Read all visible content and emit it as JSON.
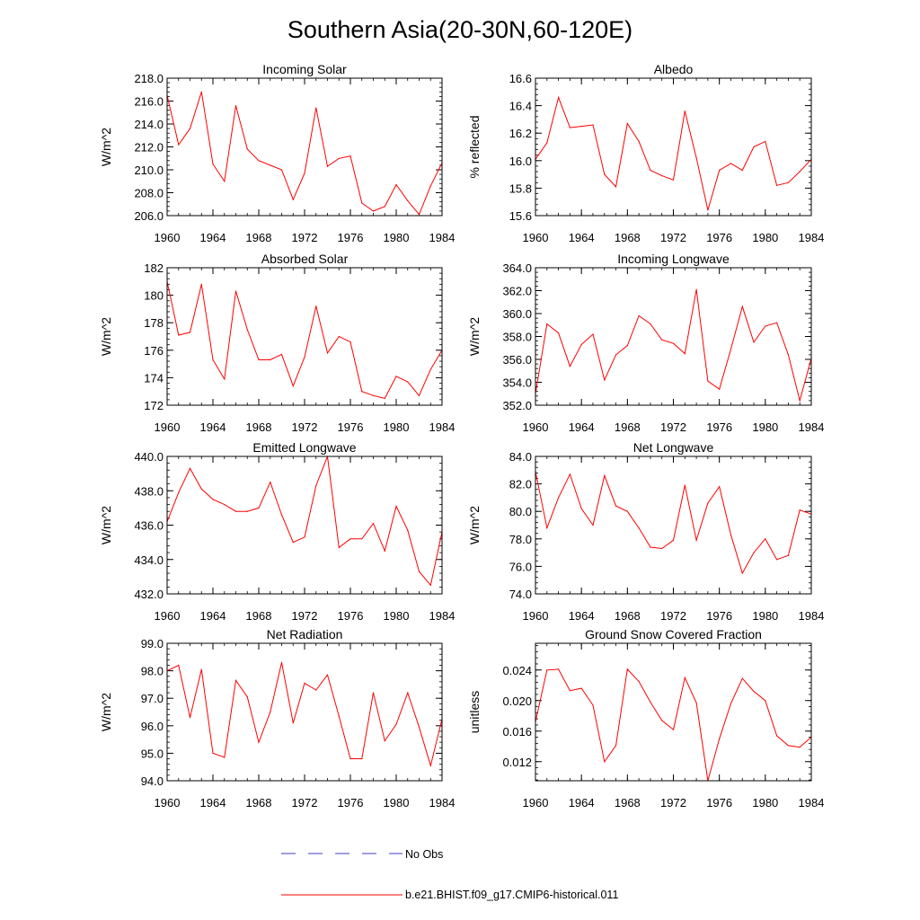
{
  "title": "Southern Asia(20-30N,60-120E)",
  "legend": {
    "obs_label": "No Obs",
    "model_label": "b.e21.BHIST.f09_g17.CMIP6-historical.011"
  },
  "colors": {
    "model": "#ff0000",
    "obs": "#3b3bbf",
    "axis": "#000000"
  },
  "chart_data": [
    {
      "type": "line",
      "title": "Incoming Solar",
      "xlabel": "",
      "ylabel": "W/m^2",
      "xlim": [
        1960,
        1984
      ],
      "ylim": [
        206,
        218
      ],
      "xticks": [
        1960,
        1964,
        1968,
        1972,
        1976,
        1980,
        1984
      ],
      "yticks": [
        "206.0",
        "208.0",
        "210.0",
        "212.0",
        "214.0",
        "216.0",
        "218.0"
      ],
      "grid": false,
      "series": [
        {
          "name": "b.e21.BHIST.f09_g17.CMIP6-historical.011",
          "x": [
            1960,
            1961,
            1962,
            1963,
            1964,
            1965,
            1966,
            1967,
            1968,
            1969,
            1970,
            1971,
            1972,
            1973,
            1974,
            1975,
            1976,
            1977,
            1978,
            1979,
            1980,
            1981,
            1982,
            1983,
            1984
          ],
          "y": [
            216.5,
            212.2,
            213.6,
            216.8,
            210.5,
            209.0,
            215.6,
            211.8,
            210.8,
            210.4,
            210.0,
            207.4,
            209.7,
            215.4,
            210.3,
            211.0,
            211.2,
            207.1,
            206.4,
            206.8,
            208.7,
            207.3,
            206.1,
            208.6,
            210.6
          ]
        }
      ]
    },
    {
      "type": "line",
      "title": "Albedo",
      "xlabel": "",
      "ylabel": "% reflected",
      "xlim": [
        1960,
        1984
      ],
      "ylim": [
        15.6,
        16.6
      ],
      "xticks": [
        1960,
        1964,
        1968,
        1972,
        1976,
        1980,
        1984
      ],
      "yticks": [
        "15.6",
        "15.8",
        "16.0",
        "16.2",
        "16.4",
        "16.6"
      ],
      "grid": false,
      "series": [
        {
          "name": "b.e21.BHIST.f09_g17.CMIP6-historical.011",
          "x": [
            1960,
            1961,
            1962,
            1963,
            1964,
            1965,
            1966,
            1967,
            1968,
            1969,
            1970,
            1971,
            1972,
            1973,
            1974,
            1975,
            1976,
            1977,
            1978,
            1979,
            1980,
            1981,
            1982,
            1983,
            1984
          ],
          "y": [
            16.01,
            16.13,
            16.46,
            16.24,
            16.25,
            16.26,
            15.9,
            15.81,
            16.27,
            16.14,
            15.93,
            15.89,
            15.86,
            16.36,
            16.02,
            15.64,
            15.93,
            15.98,
            15.93,
            16.1,
            16.14,
            15.82,
            15.84,
            15.92,
            16.01
          ]
        }
      ]
    },
    {
      "type": "line",
      "title": "Absorbed Solar",
      "xlabel": "",
      "ylabel": "W/m^2",
      "xlim": [
        1960,
        1984
      ],
      "ylim": [
        172,
        182
      ],
      "xticks": [
        1960,
        1964,
        1968,
        1972,
        1976,
        1980,
        1984
      ],
      "yticks": [
        "172",
        "174",
        "176",
        "178",
        "180",
        "182"
      ],
      "grid": false,
      "series": [
        {
          "name": "b.e21.BHIST.f09_g17.CMIP6-historical.011",
          "x": [
            1960,
            1961,
            1962,
            1963,
            1964,
            1965,
            1966,
            1967,
            1968,
            1969,
            1970,
            1971,
            1972,
            1973,
            1974,
            1975,
            1976,
            1977,
            1978,
            1979,
            1980,
            1981,
            1982,
            1983,
            1984
          ],
          "y": [
            181.0,
            177.1,
            177.3,
            180.8,
            175.3,
            173.9,
            180.3,
            177.5,
            175.3,
            175.3,
            175.7,
            173.4,
            175.5,
            179.2,
            175.8,
            177.0,
            176.6,
            173.0,
            172.7,
            172.5,
            174.1,
            173.7,
            172.7,
            174.6,
            176.0
          ]
        }
      ]
    },
    {
      "type": "line",
      "title": "Incoming Longwave",
      "xlabel": "",
      "ylabel": "W/m^2",
      "xlim": [
        1960,
        1984
      ],
      "ylim": [
        352,
        364
      ],
      "xticks": [
        1960,
        1964,
        1968,
        1972,
        1976,
        1980,
        1984
      ],
      "yticks": [
        "352.0",
        "354.0",
        "356.0",
        "358.0",
        "360.0",
        "362.0",
        "364.0"
      ],
      "grid": false,
      "series": [
        {
          "name": "b.e21.BHIST.f09_g17.CMIP6-historical.011",
          "x": [
            1960,
            1961,
            1962,
            1963,
            1964,
            1965,
            1966,
            1967,
            1968,
            1969,
            1970,
            1971,
            1972,
            1973,
            1974,
            1975,
            1976,
            1977,
            1978,
            1979,
            1980,
            1981,
            1982,
            1983,
            1984
          ],
          "y": [
            353.0,
            359.1,
            358.3,
            355.4,
            357.3,
            358.2,
            354.2,
            356.4,
            357.2,
            359.8,
            359.1,
            357.7,
            357.4,
            356.5,
            362.1,
            354.1,
            353.4,
            356.9,
            360.6,
            357.5,
            358.9,
            359.2,
            356.4,
            352.4,
            356.1
          ]
        }
      ]
    },
    {
      "type": "line",
      "title": "Emitted Longwave",
      "xlabel": "",
      "ylabel": "W/m^2",
      "xlim": [
        1960,
        1984
      ],
      "ylim": [
        432,
        440
      ],
      "xticks": [
        1960,
        1964,
        1968,
        1972,
        1976,
        1980,
        1984
      ],
      "yticks": [
        "432.0",
        "434.0",
        "436.0",
        "438.0",
        "440.0"
      ],
      "grid": false,
      "series": [
        {
          "name": "b.e21.BHIST.f09_g17.CMIP6-historical.011",
          "x": [
            1960,
            1961,
            1962,
            1963,
            1964,
            1965,
            1966,
            1967,
            1968,
            1969,
            1970,
            1971,
            1972,
            1973,
            1974,
            1975,
            1976,
            1977,
            1978,
            1979,
            1980,
            1981,
            1982,
            1983,
            1984
          ],
          "y": [
            436.2,
            437.9,
            439.3,
            438.1,
            437.5,
            437.2,
            436.8,
            436.8,
            437.0,
            438.5,
            436.6,
            435.0,
            435.3,
            438.3,
            440.0,
            434.7,
            435.2,
            435.2,
            436.1,
            434.5,
            437.1,
            435.7,
            433.3,
            432.5,
            435.6
          ]
        }
      ]
    },
    {
      "type": "line",
      "title": "Net Longwave",
      "xlabel": "",
      "ylabel": "W/m^2",
      "xlim": [
        1960,
        1984
      ],
      "ylim": [
        74,
        84
      ],
      "xticks": [
        1960,
        1964,
        1968,
        1972,
        1976,
        1980,
        1984
      ],
      "yticks": [
        "74.0",
        "76.0",
        "78.0",
        "80.0",
        "82.0",
        "84.0"
      ],
      "grid": false,
      "series": [
        {
          "name": "b.e21.BHIST.f09_g17.CMIP6-historical.011",
          "x": [
            1960,
            1961,
            1962,
            1963,
            1964,
            1965,
            1966,
            1967,
            1968,
            1969,
            1970,
            1971,
            1972,
            1973,
            1974,
            1975,
            1976,
            1977,
            1978,
            1979,
            1980,
            1981,
            1982,
            1983,
            1984
          ],
          "y": [
            82.9,
            78.8,
            81.0,
            82.7,
            80.2,
            79.0,
            82.6,
            80.4,
            80.0,
            78.8,
            77.4,
            77.3,
            77.9,
            81.9,
            77.9,
            80.6,
            81.8,
            78.3,
            75.5,
            77.0,
            78.0,
            76.5,
            76.8,
            80.1,
            79.8
          ]
        }
      ]
    },
    {
      "type": "line",
      "title": "Net Radiation",
      "xlabel": "",
      "ylabel": "W/m^2",
      "xlim": [
        1960,
        1984
      ],
      "ylim": [
        94,
        99
      ],
      "xticks": [
        1960,
        1964,
        1968,
        1972,
        1976,
        1980,
        1984
      ],
      "yticks": [
        "94.0",
        "95.0",
        "96.0",
        "97.0",
        "98.0",
        "99.0"
      ],
      "grid": false,
      "series": [
        {
          "name": "b.e21.BHIST.f09_g17.CMIP6-historical.011",
          "x": [
            1960,
            1961,
            1962,
            1963,
            1964,
            1965,
            1966,
            1967,
            1968,
            1969,
            1970,
            1971,
            1972,
            1973,
            1974,
            1975,
            1976,
            1977,
            1978,
            1979,
            1980,
            1981,
            1982,
            1983,
            1984
          ],
          "y": [
            98.0,
            98.2,
            96.3,
            98.05,
            95.0,
            94.85,
            97.65,
            97.05,
            95.4,
            96.5,
            98.3,
            96.1,
            97.55,
            97.3,
            97.85,
            96.35,
            94.8,
            94.8,
            97.2,
            95.45,
            96.05,
            97.2,
            95.95,
            94.55,
            96.25
          ]
        }
      ]
    },
    {
      "type": "line",
      "title": "Ground Snow Covered Fraction",
      "xlabel": "",
      "ylabel": "unitless",
      "xlim": [
        1960,
        1984
      ],
      "ylim": [
        0.0095,
        0.0275
      ],
      "xticks": [
        1960,
        1964,
        1968,
        1972,
        1976,
        1980,
        1984
      ],
      "yticks": [
        "0.012",
        "0.016",
        "0.020",
        "0.024"
      ],
      "grid": false,
      "series": [
        {
          "name": "b.e21.BHIST.f09_g17.CMIP6-historical.011",
          "x": [
            1960,
            1961,
            1962,
            1963,
            1964,
            1965,
            1966,
            1967,
            1968,
            1969,
            1970,
            1971,
            1972,
            1973,
            1974,
            1975,
            1976,
            1977,
            1978,
            1979,
            1980,
            1981,
            1982,
            1983,
            1984
          ],
          "y": [
            0.0172,
            0.024,
            0.0241,
            0.0213,
            0.0216,
            0.0194,
            0.012,
            0.0141,
            0.0241,
            0.0225,
            0.0198,
            0.0174,
            0.0162,
            0.023,
            0.0197,
            0.0095,
            0.015,
            0.0196,
            0.0229,
            0.0212,
            0.02,
            0.0154,
            0.0141,
            0.0139,
            0.0152
          ]
        }
      ]
    }
  ]
}
